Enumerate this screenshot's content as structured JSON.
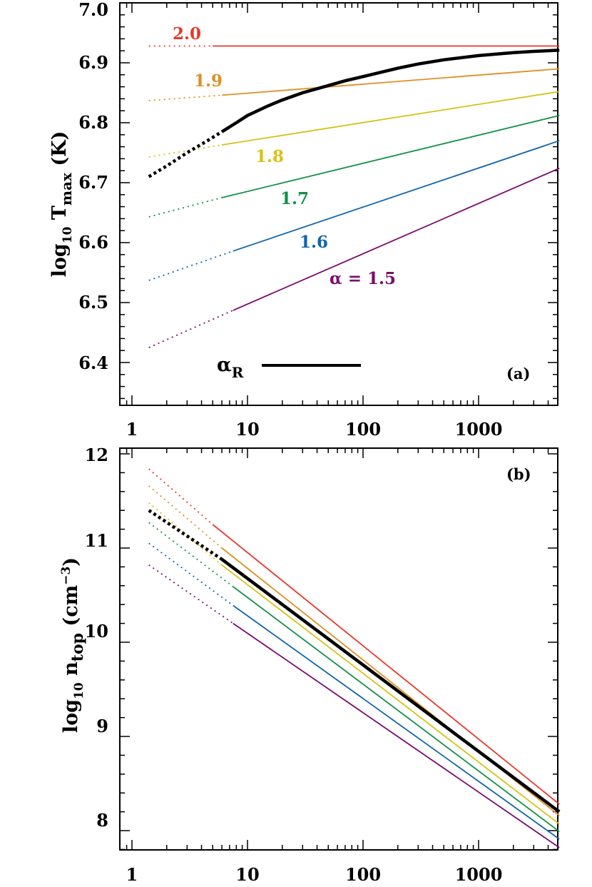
{
  "colors": {
    "2.0": "#e8382b",
    "1.9": "#df8f25",
    "1.8": "#d6c215",
    "1.7": "#12904a",
    "1.6": "#1066ad",
    "1.5": "#7c0c6e",
    "alpha_R": "#000000"
  },
  "chart_data": [
    {
      "type": "line",
      "panel_label": "(a)",
      "xscale": "log",
      "xlim": [
        0.8,
        6000
      ],
      "ylim": [
        6.33,
        7.0
      ],
      "xticks": [
        "1",
        "10",
        "100",
        "1000"
      ],
      "yticks": [
        "6.4",
        "6.5",
        "6.6",
        "6.7",
        "6.8",
        "6.9",
        "7.0"
      ],
      "ylabel": {
        "main": "log",
        "sub1": "10",
        "mid": " T",
        "sub2": "max",
        "tail": " (K)"
      },
      "legend": {
        "symbol": "α",
        "sub": "R",
        "placement": "bottom-left"
      },
      "series": [
        {
          "name": "2.0",
          "dotted": [
            [
              1.4,
              6.928
            ],
            [
              5.0,
              6.928
            ]
          ],
          "solid": [
            [
              5.0,
              6.928
            ],
            [
              5000,
              6.928
            ]
          ]
        },
        {
          "name": "1.9",
          "dotted": [
            [
              1.4,
              6.837
            ],
            [
              6.0,
              6.846
            ]
          ],
          "solid": [
            [
              6.0,
              6.846
            ],
            [
              5000,
              6.89
            ]
          ]
        },
        {
          "name": "1.8",
          "dotted": [
            [
              1.4,
              6.743
            ],
            [
              6.0,
              6.763
            ]
          ],
          "solid": [
            [
              6.0,
              6.763
            ],
            [
              5000,
              6.852
            ]
          ]
        },
        {
          "name": "1.7",
          "dotted": [
            [
              1.4,
              6.643
            ],
            [
              6.0,
              6.675
            ]
          ],
          "solid": [
            [
              6.0,
              6.675
            ],
            [
              5000,
              6.812
            ]
          ]
        },
        {
          "name": "1.6",
          "dotted": [
            [
              1.4,
              6.537
            ],
            [
              7.5,
              6.586
            ]
          ],
          "solid": [
            [
              7.5,
              6.586
            ],
            [
              5000,
              6.77
            ]
          ]
        },
        {
          "name": "α = 1.5",
          "dotted": [
            [
              1.4,
              6.425
            ],
            [
              7.5,
              6.487
            ]
          ],
          "solid": [
            [
              7.5,
              6.487
            ],
            [
              5000,
              6.724
            ]
          ]
        },
        {
          "name": "α_R",
          "bold": true,
          "dotted": [
            [
              1.4,
              6.71
            ],
            [
              2.0,
              6.728
            ],
            [
              3.0,
              6.75
            ],
            [
              4.5,
              6.77
            ],
            [
              6.0,
              6.785
            ]
          ],
          "solid": [
            [
              6.0,
              6.785
            ],
            [
              8,
              6.8
            ],
            [
              10,
              6.812
            ],
            [
              15,
              6.828
            ],
            [
              20,
              6.838
            ],
            [
              30,
              6.85
            ],
            [
              50,
              6.862
            ],
            [
              70,
              6.87
            ],
            [
              100,
              6.877
            ],
            [
              200,
              6.891
            ],
            [
              300,
              6.898
            ],
            [
              500,
              6.905
            ],
            [
              1000,
              6.912
            ],
            [
              2000,
              6.917
            ],
            [
              3000,
              6.919
            ],
            [
              5000,
              6.921
            ]
          ]
        }
      ]
    },
    {
      "type": "line",
      "panel_label": "(b)",
      "xscale": "log",
      "xlim": [
        0.8,
        6000
      ],
      "ylim": [
        7.75,
        12.0
      ],
      "xticks": [
        "1",
        "10",
        "100",
        "1000"
      ],
      "yticks": [
        "8",
        "9",
        "10",
        "11",
        "12"
      ],
      "ylabel": {
        "main": "log",
        "sub1": "10",
        "mid": " n",
        "sub2": "top",
        "tail": " (cm",
        "sup": "−3",
        "close": ")"
      },
      "series": [
        {
          "name": "2.0",
          "dotted": [
            [
              1.4,
              11.84
            ],
            [
              5.0,
              11.25
            ]
          ],
          "solid": [
            [
              5.0,
              11.25
            ],
            [
              5000,
              8.28
            ]
          ]
        },
        {
          "name": "1.9",
          "dotted": [
            [
              1.4,
              11.66
            ],
            [
              6.0,
              11.0
            ]
          ],
          "solid": [
            [
              6.0,
              11.0
            ],
            [
              5000,
              8.16
            ]
          ]
        },
        {
          "name": "1.8",
          "dotted": [
            [
              1.4,
              11.48
            ],
            [
              6.0,
              10.82
            ]
          ],
          "solid": [
            [
              6.0,
              10.82
            ],
            [
              5000,
              8.07
            ]
          ]
        },
        {
          "name": "1.7",
          "dotted": [
            [
              1.4,
              11.27
            ],
            [
              7.5,
              10.59
            ]
          ],
          "solid": [
            [
              7.5,
              10.59
            ],
            [
              5000,
              7.99
            ]
          ]
        },
        {
          "name": "1.6",
          "dotted": [
            [
              1.4,
              11.05
            ],
            [
              7.5,
              10.39
            ]
          ],
          "solid": [
            [
              7.5,
              10.39
            ],
            [
              5000,
              7.91
            ]
          ]
        },
        {
          "name": "α = 1.5",
          "dotted": [
            [
              1.4,
              10.82
            ],
            [
              7.5,
              10.2
            ]
          ],
          "solid": [
            [
              7.5,
              10.2
            ],
            [
              5000,
              7.82
            ]
          ]
        },
        {
          "name": "α_R",
          "bold": true,
          "dotted": [
            [
              1.4,
              11.4
            ],
            [
              6.0,
              10.88
            ]
          ],
          "solid": [
            [
              6.0,
              10.88
            ],
            [
              5000,
              8.2
            ]
          ]
        }
      ]
    }
  ]
}
